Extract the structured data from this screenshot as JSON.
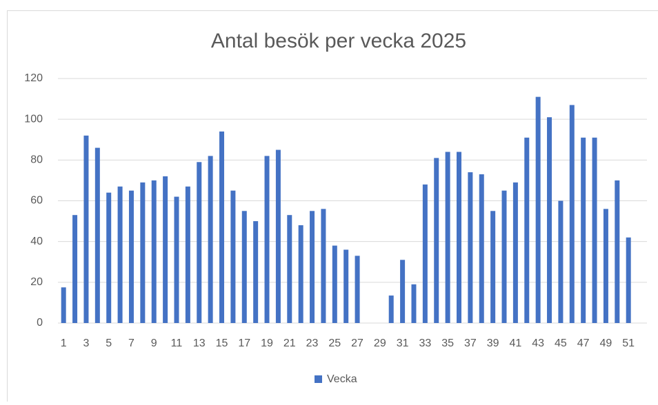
{
  "chart_data": {
    "type": "bar",
    "title": "Antal besök per vecka 2025",
    "categories": [
      "1",
      null,
      "3",
      null,
      "5",
      null,
      "7",
      null,
      "9",
      null,
      "11",
      null,
      "13",
      null,
      "15",
      null,
      "17",
      null,
      "19",
      null,
      "21",
      null,
      "23",
      null,
      "25",
      null,
      "27",
      null,
      "29",
      null,
      "31",
      null,
      "33",
      null,
      "35",
      null,
      "37",
      null,
      "39",
      null,
      "41",
      null,
      "43",
      null,
      "45",
      null,
      "47",
      null,
      "49",
      null,
      "51"
    ],
    "series": [
      {
        "name": "Vecka",
        "color": "#4472c4",
        "values": [
          17.5,
          53,
          92,
          86,
          64,
          67,
          65,
          69,
          70,
          72,
          62,
          67,
          79,
          82,
          94,
          65,
          55,
          50,
          82,
          85,
          53,
          48,
          55,
          56,
          38,
          36,
          33,
          null,
          null,
          13.5,
          31,
          19,
          68,
          81,
          84,
          84,
          74,
          73,
          55,
          65,
          69,
          91,
          111,
          101,
          60,
          107,
          91,
          91,
          56,
          70,
          42
        ]
      }
    ],
    "ylim": [
      0,
      120
    ],
    "yticks": [
      0,
      20,
      40,
      60,
      80,
      100,
      120
    ],
    "grid": true,
    "legend": "bottom"
  }
}
